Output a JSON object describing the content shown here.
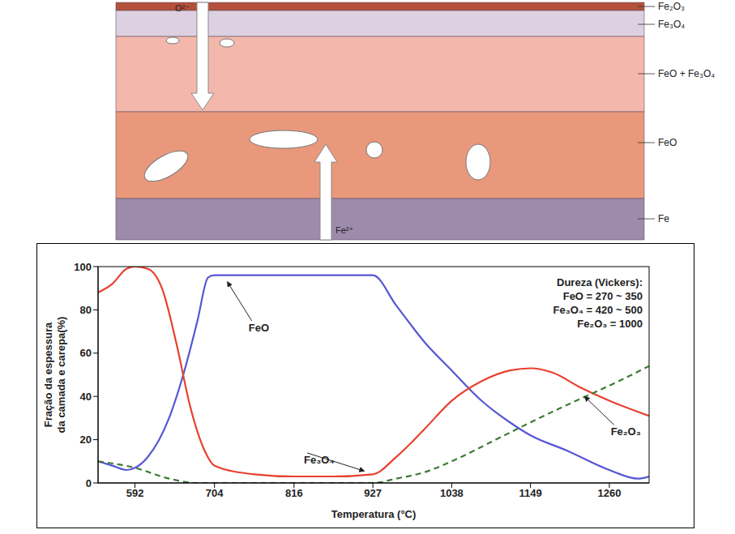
{
  "diagram": {
    "layers": [
      "Fe₂O₃",
      "Fe₃O₄",
      "FeO + Fe₃O₄",
      "FeO",
      "Fe"
    ],
    "ions": [
      "O²⁻",
      "Fe²⁺"
    ]
  },
  "chart_data": {
    "type": "line",
    "x_label": "Temperatura (°C)",
    "y_label": "Fração da espessura da camada e carepa(%)",
    "annotations": [
      "Dureza (Vickers):",
      "FeO = 270 ~ 350",
      "Fe₃O₄ = 420 ~ 500",
      "Fe₂O₃ = 1000"
    ],
    "xlim": [
      540,
      1316
    ],
    "xticks": [
      592,
      704,
      816,
      927,
      1038,
      1149,
      1260
    ],
    "ylim": [
      0,
      100
    ],
    "yticks": [
      0,
      20,
      40,
      60,
      80,
      100
    ],
    "series": [
      {
        "name": "FeO",
        "color": "#5656d4",
        "line_style": "solid",
        "x": [
          540,
          560,
          580,
          592,
          610,
          640,
          660,
          680,
          695,
          704,
          816,
          927,
          960,
          1000,
          1038,
          1080,
          1120,
          1149,
          1200,
          1260,
          1300,
          1316
        ],
        "values": [
          10,
          8,
          6,
          7,
          12,
          30,
          50,
          75,
          95,
          96,
          96,
          96,
          82,
          65,
          52,
          38,
          28,
          22,
          15,
          6,
          2,
          3
        ]
      },
      {
        "name": "Fe₃O₄",
        "color": "#e8402e",
        "line_style": "solid",
        "x": [
          540,
          560,
          580,
          592,
          610,
          630,
          650,
          670,
          690,
          704,
          760,
          816,
          870,
          927,
          960,
          1000,
          1038,
          1080,
          1120,
          1149,
          1180,
          1220,
          1260,
          1316
        ],
        "values": [
          88,
          92,
          99,
          100,
          99,
          90,
          65,
          35,
          15,
          8,
          4,
          3,
          3,
          4,
          12,
          25,
          38,
          47,
          52,
          53,
          51,
          44,
          38,
          31
        ]
      },
      {
        "name": "Fe₂O₃",
        "color": "#3d7a35",
        "line_style": "dashed",
        "x": [
          540,
          592,
          640,
          680,
          704,
          816,
          927,
          960,
          1000,
          1038,
          1100,
          1149,
          1200,
          1260,
          1316
        ],
        "values": [
          10,
          7,
          2,
          0,
          0,
          0,
          0,
          2,
          5,
          10,
          20,
          28,
          36,
          45,
          54
        ]
      }
    ]
  }
}
